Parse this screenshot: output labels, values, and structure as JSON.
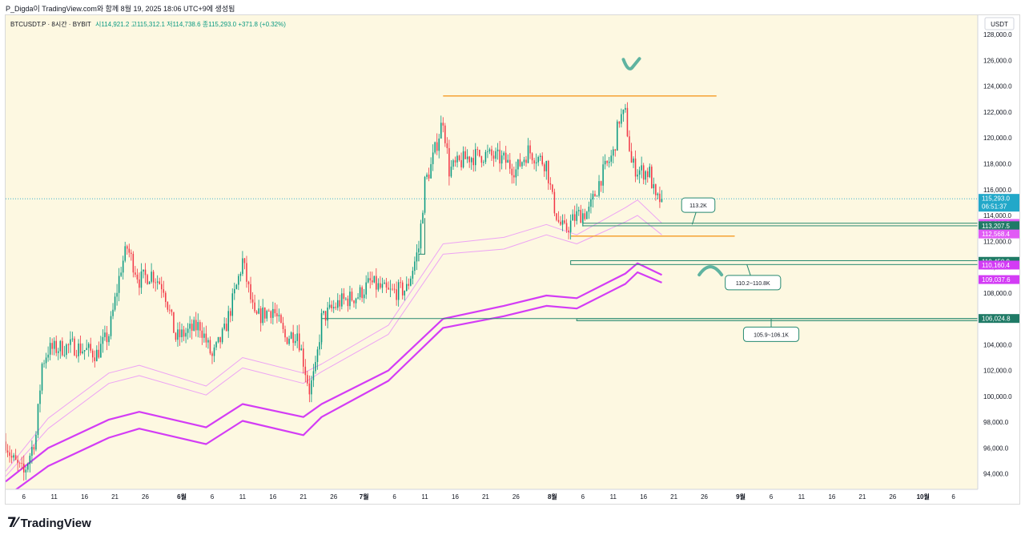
{
  "caption": "P_Digda이 TradingView.com와 함께 8월 19, 2025 18:06 UTC+9에 생성됨",
  "header": {
    "symbol": "BTCUSDT.P · 8시간 · BYBIT",
    "ohlc": "시114,921.2  고115,312.1  저114,738.6  종115,293.0  +371.8 (+0.32%)"
  },
  "currency_label": "USDT",
  "footer": {
    "brand": "TradingView"
  },
  "colors": {
    "background": "#fdf8e1",
    "candle_up": "#089981",
    "candle_down": "#f23645",
    "band_outer": "#d33cf5",
    "band_inner": "#eda3f4",
    "level_orange": "#f59a23",
    "level_green": "#26896f",
    "annotation": "#5fb3a0"
  },
  "chart_data": {
    "type": "candlestick",
    "y_axis": {
      "min": 92800,
      "max": 129500,
      "ticks": [
        94000,
        96000,
        98000,
        100000,
        102000,
        104000,
        106000,
        108000,
        110000,
        112000,
        114000,
        116000,
        118000,
        120000,
        122000,
        124000,
        126000,
        128000
      ],
      "tick_labels": [
        "94,000.0",
        "96,000.0",
        "98,000.0",
        "100,000.0",
        "102,000.0",
        "104,000.0",
        "106,000.0",
        "108,000.0",
        "110,000.0",
        "112,000.0",
        "114,000.0",
        "116,000.0",
        "118,000.0",
        "120,000.0",
        "122,000.0",
        "124,000.0",
        "126,000.0",
        "128,000.0"
      ]
    },
    "x_axis": {
      "start_date": "2025-05-03",
      "end_date": "2025-10-10",
      "ticks": [
        {
          "date": "2025-05-06",
          "label": "6"
        },
        {
          "date": "2025-05-11",
          "label": "11"
        },
        {
          "date": "2025-05-16",
          "label": "16"
        },
        {
          "date": "2025-05-21",
          "label": "21"
        },
        {
          "date": "2025-05-26",
          "label": "26"
        },
        {
          "date": "2025-06-01",
          "label": "6월"
        },
        {
          "date": "2025-06-06",
          "label": "6"
        },
        {
          "date": "2025-06-11",
          "label": "11"
        },
        {
          "date": "2025-06-16",
          "label": "16"
        },
        {
          "date": "2025-06-21",
          "label": "21"
        },
        {
          "date": "2025-06-26",
          "label": "26"
        },
        {
          "date": "2025-07-01",
          "label": "7월"
        },
        {
          "date": "2025-07-06",
          "label": "6"
        },
        {
          "date": "2025-07-11",
          "label": "11"
        },
        {
          "date": "2025-07-16",
          "label": "16"
        },
        {
          "date": "2025-07-21",
          "label": "21"
        },
        {
          "date": "2025-07-26",
          "label": "26"
        },
        {
          "date": "2025-08-01",
          "label": "8월"
        },
        {
          "date": "2025-08-06",
          "label": "6"
        },
        {
          "date": "2025-08-11",
          "label": "11"
        },
        {
          "date": "2025-08-16",
          "label": "16"
        },
        {
          "date": "2025-08-21",
          "label": "21"
        },
        {
          "date": "2025-08-26",
          "label": "26"
        },
        {
          "date": "2025-09-01",
          "label": "9월"
        },
        {
          "date": "2025-09-06",
          "label": "6"
        },
        {
          "date": "2025-09-11",
          "label": "11"
        },
        {
          "date": "2025-09-16",
          "label": "16"
        },
        {
          "date": "2025-09-21",
          "label": "21"
        },
        {
          "date": "2025-09-26",
          "label": "26"
        },
        {
          "date": "2025-10-01",
          "label": "10월"
        },
        {
          "date": "2025-10-06",
          "label": "6"
        }
      ]
    },
    "close_anchors": [
      [
        "2025-05-03",
        96500
      ],
      [
        "2025-05-04",
        95200
      ],
      [
        "2025-05-06",
        94000
      ],
      [
        "2025-05-08",
        97000
      ],
      [
        "2025-05-09",
        102500
      ],
      [
        "2025-05-10",
        103600
      ],
      [
        "2025-05-14",
        103900
      ],
      [
        "2025-05-18",
        103300
      ],
      [
        "2025-05-20",
        104800
      ],
      [
        "2025-05-22",
        110000
      ],
      [
        "2025-05-23",
        111500
      ],
      [
        "2025-05-25",
        109000
      ],
      [
        "2025-05-27",
        109500
      ],
      [
        "2025-05-29",
        108500
      ],
      [
        "2025-05-31",
        104500
      ],
      [
        "2025-06-02",
        105000
      ],
      [
        "2025-06-04",
        105500
      ],
      [
        "2025-06-06",
        103000
      ],
      [
        "2025-06-08",
        105000
      ],
      [
        "2025-06-10",
        108500
      ],
      [
        "2025-06-11",
        110500
      ],
      [
        "2025-06-13",
        106000
      ],
      [
        "2025-06-16",
        106800
      ],
      [
        "2025-06-18",
        104500
      ],
      [
        "2025-06-20",
        105000
      ],
      [
        "2025-06-22",
        100500
      ],
      [
        "2025-06-23",
        102000
      ],
      [
        "2025-06-24",
        106000
      ],
      [
        "2025-06-27",
        107300
      ],
      [
        "2025-06-30",
        107800
      ],
      [
        "2025-07-02",
        108800
      ],
      [
        "2025-07-05",
        108000
      ],
      [
        "2025-07-08",
        108300
      ],
      [
        "2025-07-10",
        111500
      ],
      [
        "2025-07-11",
        116500
      ],
      [
        "2025-07-12",
        117800
      ],
      [
        "2025-07-14",
        121500
      ],
      [
        "2025-07-15",
        117500
      ],
      [
        "2025-07-18",
        118500
      ],
      [
        "2025-07-21",
        118700
      ],
      [
        "2025-07-24",
        118300
      ],
      [
        "2025-07-26",
        117500
      ],
      [
        "2025-07-28",
        119000
      ],
      [
        "2025-07-31",
        118000
      ],
      [
        "2025-08-01",
        115200
      ],
      [
        "2025-08-02",
        113500
      ],
      [
        "2025-08-03",
        112800
      ],
      [
        "2025-08-05",
        114000
      ],
      [
        "2025-08-07",
        114300
      ],
      [
        "2025-08-09",
        117000
      ],
      [
        "2025-08-11",
        118800
      ],
      [
        "2025-08-12",
        121500
      ],
      [
        "2025-08-13",
        121800
      ],
      [
        "2025-08-14",
        118000
      ],
      [
        "2025-08-15",
        117500
      ],
      [
        "2025-08-17",
        117300
      ],
      [
        "2025-08-18",
        115100
      ],
      [
        "2025-08-19",
        115293
      ]
    ],
    "bands": [
      {
        "role": "outer-upper",
        "points": [
          [
            "2025-05-03",
            93400
          ],
          [
            "2025-05-10",
            96000
          ],
          [
            "2025-05-20",
            98200
          ],
          [
            "2025-05-25",
            98800
          ],
          [
            "2025-06-05",
            97600
          ],
          [
            "2025-06-11",
            99400
          ],
          [
            "2025-06-21",
            98400
          ],
          [
            "2025-06-24",
            99400
          ],
          [
            "2025-07-05",
            102000
          ],
          [
            "2025-07-14",
            106000
          ],
          [
            "2025-07-24",
            107000
          ],
          [
            "2025-07-31",
            107800
          ],
          [
            "2025-08-05",
            107600
          ],
          [
            "2025-08-13",
            109500
          ],
          [
            "2025-08-15",
            110300
          ],
          [
            "2025-08-19",
            109400
          ]
        ]
      },
      {
        "role": "outer-lower",
        "points": [
          [
            "2025-05-03",
            92200
          ],
          [
            "2025-05-10",
            94600
          ],
          [
            "2025-05-20",
            96800
          ],
          [
            "2025-05-25",
            97500
          ],
          [
            "2025-06-05",
            96300
          ],
          [
            "2025-06-11",
            98100
          ],
          [
            "2025-06-21",
            97000
          ],
          [
            "2025-06-24",
            98400
          ],
          [
            "2025-07-05",
            101200
          ],
          [
            "2025-07-14",
            105300
          ],
          [
            "2025-07-24",
            106200
          ],
          [
            "2025-07-31",
            107000
          ],
          [
            "2025-08-05",
            106800
          ],
          [
            "2025-08-13",
            108700
          ],
          [
            "2025-08-15",
            109600
          ],
          [
            "2025-08-19",
            108800
          ]
        ]
      },
      {
        "role": "inner-upper",
        "points": [
          [
            "2025-05-03",
            94200
          ],
          [
            "2025-05-10",
            98300
          ],
          [
            "2025-05-20",
            101800
          ],
          [
            "2025-05-25",
            102400
          ],
          [
            "2025-06-05",
            100800
          ],
          [
            "2025-06-11",
            103000
          ],
          [
            "2025-06-21",
            101800
          ],
          [
            "2025-06-24",
            102500
          ],
          [
            "2025-07-05",
            105500
          ],
          [
            "2025-07-14",
            111800
          ],
          [
            "2025-07-24",
            112300
          ],
          [
            "2025-07-31",
            113300
          ],
          [
            "2025-08-05",
            112500
          ],
          [
            "2025-08-13",
            114600
          ],
          [
            "2025-08-15",
            115200
          ],
          [
            "2025-08-19",
            113400
          ]
        ]
      },
      {
        "role": "inner-lower",
        "points": [
          [
            "2025-05-03",
            93800
          ],
          [
            "2025-05-10",
            97500
          ],
          [
            "2025-05-20",
            101000
          ],
          [
            "2025-05-25",
            101600
          ],
          [
            "2025-06-05",
            100100
          ],
          [
            "2025-06-11",
            102200
          ],
          [
            "2025-06-21",
            101000
          ],
          [
            "2025-06-24",
            101900
          ],
          [
            "2025-07-05",
            104800
          ],
          [
            "2025-07-14",
            111000
          ],
          [
            "2025-07-24",
            111400
          ],
          [
            "2025-07-31",
            112500
          ],
          [
            "2025-08-05",
            111800
          ],
          [
            "2025-08-13",
            113500
          ],
          [
            "2025-08-15",
            114000
          ],
          [
            "2025-08-19",
            112500
          ]
        ]
      }
    ],
    "horizontal_levels": [
      {
        "role": "top-resistance",
        "color": "orange",
        "y": 123250,
        "from": "2025-07-14",
        "to": "2025-08-28"
      },
      {
        "role": "mid-resistance",
        "color": "orange",
        "y": 112400,
        "from": "2025-08-04",
        "to": "2025-08-31"
      },
      {
        "role": "zone-113",
        "color": "green",
        "y": 113400,
        "y2": 113200,
        "from": "2025-08-06",
        "to": "2025-10-10"
      },
      {
        "role": "zone-110",
        "color": "green",
        "y": 110500,
        "y2": 110200,
        "from": "2025-08-04",
        "to": "2025-10-10"
      },
      {
        "role": "zone-106",
        "color": "green",
        "y": 106000,
        "y2": 105850,
        "from": "2025-08-05",
        "to": "2025-10-10"
      }
    ],
    "step_lines": [
      {
        "points": [
          [
            "2025-07-10",
            110450
          ],
          [
            "2025-07-10",
            111000
          ],
          [
            "2025-07-11",
            111000
          ],
          [
            "2025-07-11",
            113800
          ]
        ]
      },
      {
        "points": [
          [
            "2025-06-24",
            104000
          ],
          [
            "2025-06-24",
            106020
          ],
          [
            "2025-10-10",
            106020
          ]
        ]
      }
    ],
    "callouts": [
      {
        "text": "113.2K",
        "at": [
          "2025-08-25",
          114800
        ],
        "pointer": [
          "2025-08-24",
          113300
        ]
      },
      {
        "text": "110.2~110.8K",
        "at": [
          "2025-09-03",
          108800
        ],
        "pointer": [
          "2025-09-02",
          110200
        ]
      },
      {
        "text": "105.9~106.1K",
        "at": [
          "2025-09-06",
          104800
        ],
        "pointer": [
          "2025-09-06",
          106000
        ]
      }
    ],
    "price_labels": [
      {
        "text": "115,293.0",
        "sub": "06:51:37",
        "y": 115293,
        "color": "#22a8c9"
      },
      {
        "text": "113,382.8",
        "y": 113382.8,
        "color": "#e15bf5"
      },
      {
        "text": "113,207.5",
        "y": 113207.5,
        "color": "#1f7a66"
      },
      {
        "text": "112,568.4",
        "y": 112568.4,
        "color": "#e15bf5"
      },
      {
        "text": "110,450.9",
        "y": 110450.9,
        "color": "#1f7a66"
      },
      {
        "text": "110,160.4",
        "y": 110160.4,
        "color": "#d33cf5"
      },
      {
        "text": "109,037.6",
        "y": 109037.6,
        "color": "#d33cf5"
      },
      {
        "text": "106,024.8",
        "y": 106024.8,
        "color": "#1f7a66"
      }
    ],
    "marks": [
      {
        "shape": "check",
        "at": [
          "2025-08-14",
          125700
        ]
      },
      {
        "shape": "arch",
        "at": [
          "2025-08-27",
          109900
        ]
      }
    ]
  }
}
